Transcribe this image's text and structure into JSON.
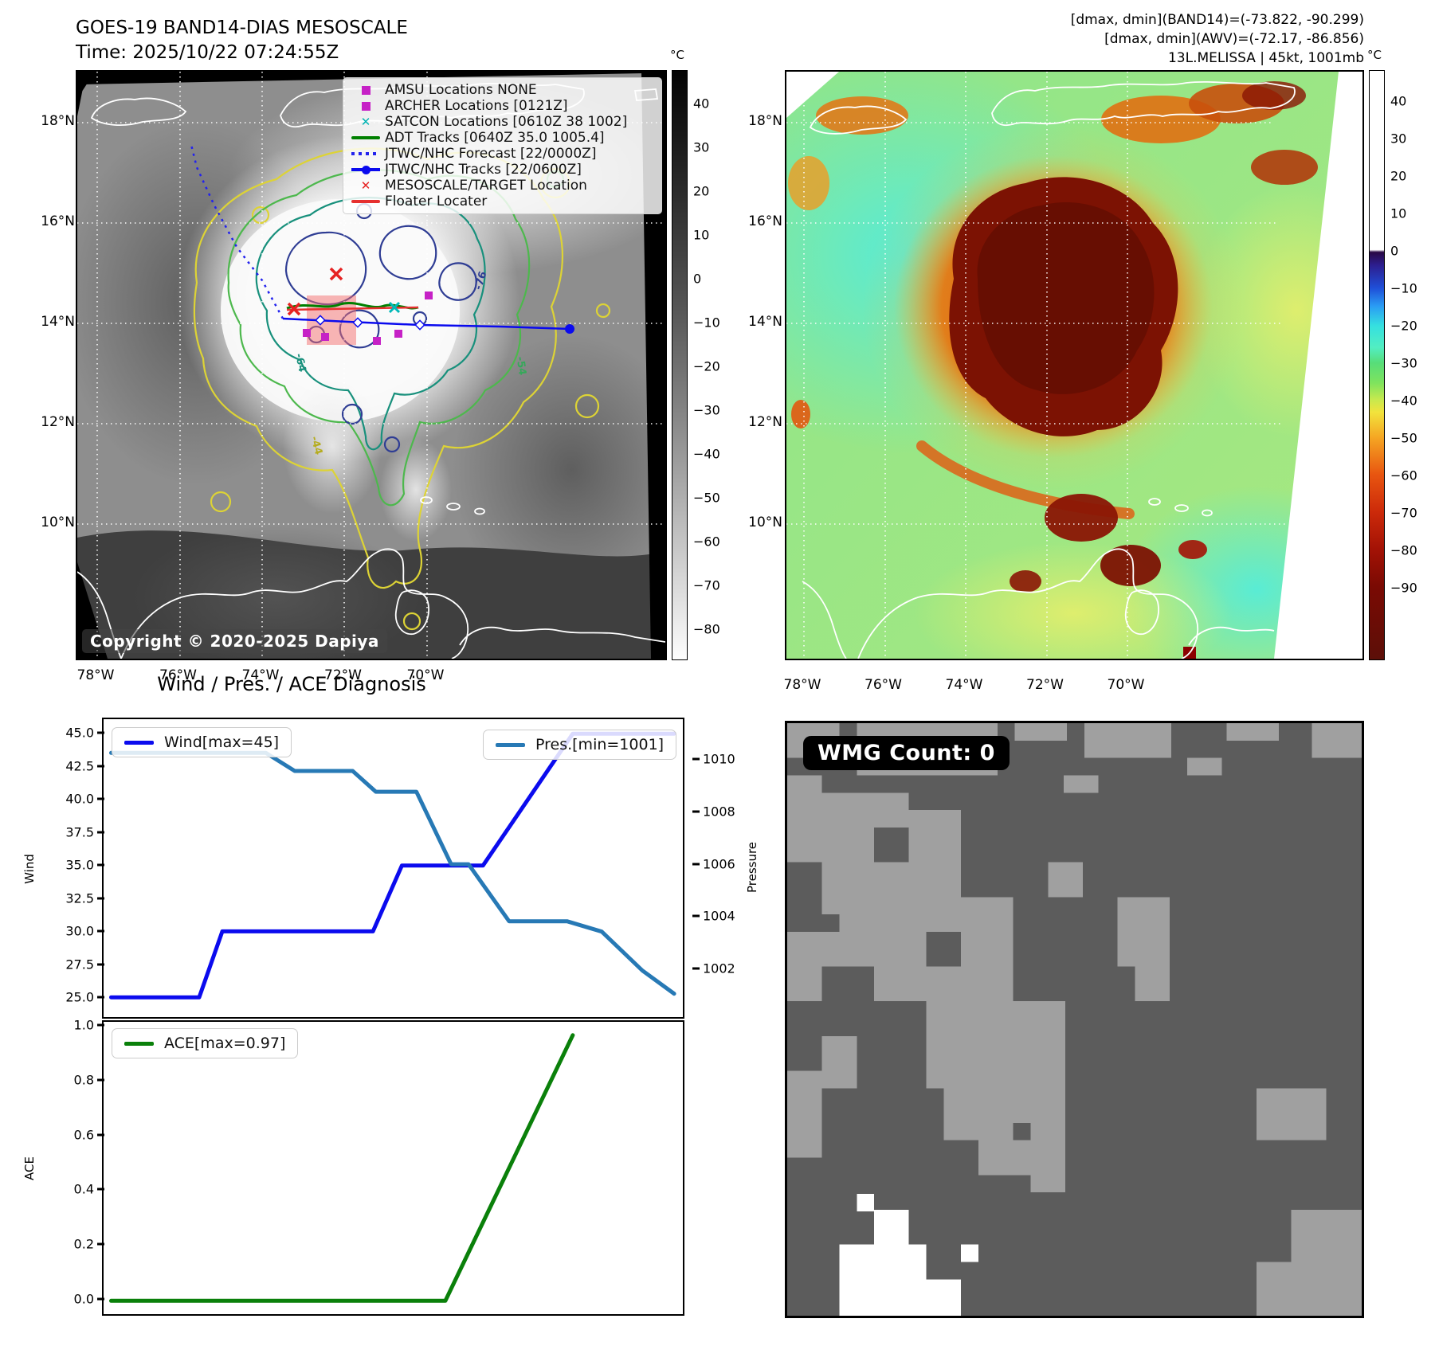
{
  "left_panel": {
    "title": "GOES-19 BAND14-DIAS MESOSCALE",
    "subtitle": "Time: 2025/10/22 07:24:55Z",
    "copyright": "Copyright © 2020-2025 Dapiya",
    "legend": [
      {
        "label": "AMSU Locations NONE",
        "marker": "square",
        "color": "#c621c6"
      },
      {
        "label": "ARCHER Locations [0121Z]",
        "marker": "square",
        "color": "#c621c6"
      },
      {
        "label": "SATCON Locations [0610Z 38 1002]",
        "marker": "x",
        "color": "#00b3b3"
      },
      {
        "label": "ADT Tracks [0640Z 35.0 1005.4]",
        "marker": "line",
        "color": "#008000"
      },
      {
        "label": "JTWC/NHC Forecast [22/0000Z]",
        "marker": "dotted",
        "color": "#2222ee"
      },
      {
        "label": "JTWC/NHC Tracks [22/0600Z]",
        "marker": "line-dot",
        "color": "#0a0aee"
      },
      {
        "label": "MESOSCALE/TARGET Location",
        "marker": "x",
        "color": "#e62222"
      },
      {
        "label": "Floater Locater",
        "marker": "line",
        "color": "#e63030"
      }
    ],
    "x_ticks": [
      "78°W",
      "76°W",
      "74°W",
      "72°W",
      "70°W"
    ],
    "y_ticks": [
      "18°N",
      "16°N",
      "14°N",
      "12°N",
      "10°N"
    ],
    "colorbar": {
      "unit": "°C",
      "ticks": [
        "40",
        "30",
        "20",
        "10",
        "0",
        "−10",
        "−20",
        "−30",
        "−40",
        "−50",
        "−60",
        "−70",
        "−80"
      ]
    },
    "contour_labels": [
      {
        "text": "-76",
        "color": "#2f3d94"
      },
      {
        "text": "-64",
        "color": "#18907c"
      },
      {
        "text": "-54",
        "color": "#35a85a"
      },
      {
        "text": "-44",
        "color": "#b5ac1d"
      }
    ]
  },
  "right_panel": {
    "header": [
      "[dmax, dmin](BAND14)=(-73.822, -90.299)",
      "[dmax, dmin](AWV)=(-72.17, -86.856)",
      "13L.MELISSA | 45kt, 1001mb"
    ],
    "x_ticks": [
      "78°W",
      "76°W",
      "74°W",
      "72°W",
      "70°W"
    ],
    "y_ticks": [
      "18°N",
      "16°N",
      "14°N",
      "12°N",
      "10°N"
    ],
    "colorbar": {
      "unit": "°C",
      "ticks": [
        "40",
        "30",
        "20",
        "10",
        "0",
        "−10",
        "−20",
        "−30",
        "−40",
        "−50",
        "−60",
        "−70",
        "−80",
        "−90"
      ]
    }
  },
  "diagnosis": {
    "title": "Wind / Pres. / ACE Diagnosis",
    "wind_axis_label": "Wind",
    "pressure_axis_label": "Pressure",
    "ace_axis_label": "ACE",
    "wind_legend": "Wind[max=45]",
    "pres_legend": "Pres.[min=1001]",
    "ace_legend": "ACE[max=0.97]",
    "wind_ticks": [
      "45.0",
      "42.5",
      "40.0",
      "37.5",
      "35.0",
      "32.5",
      "30.0",
      "27.5",
      "25.0"
    ],
    "pressure_ticks": [
      "1010",
      "1008",
      "1006",
      "1004",
      "1002"
    ],
    "ace_ticks": [
      "1.0",
      "0.8",
      "0.6",
      "0.4",
      "0.2",
      "0.0"
    ]
  },
  "wmg": {
    "label": "WMG Count: 0"
  },
  "chart_data": [
    {
      "type": "line",
      "title": "Wind / Pres. / ACE Diagnosis",
      "x_note": "normalized time 0-1, no x tick labels shown",
      "xlim": [
        0,
        1
      ],
      "left_axis": {
        "label": "Wind",
        "ticks": [
          45.0,
          42.5,
          40.0,
          37.5,
          35.0,
          32.5,
          30.0,
          27.5,
          25.0
        ],
        "range": [
          23.5,
          46.1
        ]
      },
      "right_axis": {
        "label": "Pressure",
        "ticks": [
          1010,
          1008,
          1006,
          1004,
          1002
        ],
        "range": [
          1000.1,
          1011.6
        ]
      },
      "series": [
        {
          "name": "Wind[max=45]",
          "axis": "left",
          "color": "#0b0bee",
          "x": [
            0.013,
            0.165,
            0.205,
            0.465,
            0.515,
            0.655,
            0.81,
            0.985
          ],
          "y": [
            25,
            25,
            30,
            30,
            35,
            35,
            45,
            45
          ]
        },
        {
          "name": "Pres.[min=1001]",
          "axis": "right",
          "color": "#2779b5",
          "x": [
            0.013,
            0.28,
            0.33,
            0.43,
            0.47,
            0.54,
            0.6,
            0.63,
            0.7,
            0.8,
            0.86,
            0.93,
            0.985
          ],
          "y": [
            1010.3,
            1010.3,
            1009.6,
            1009.6,
            1008.8,
            1008.8,
            1006.0,
            1006.0,
            1003.8,
            1003.8,
            1003.4,
            1001.9,
            1001.0
          ]
        }
      ]
    },
    {
      "type": "line",
      "xlim": [
        0,
        1
      ],
      "left_axis": {
        "label": "ACE",
        "ticks": [
          1.0,
          0.8,
          0.6,
          0.4,
          0.2,
          0.0
        ],
        "range": [
          -0.0485,
          1.0185
        ]
      },
      "series": [
        {
          "name": "ACE[max=0.97]",
          "axis": "left",
          "color": "#0a800a",
          "x": [
            0.013,
            0.59,
            0.81
          ],
          "y": [
            0.0,
            0.0,
            0.97
          ]
        }
      ]
    }
  ]
}
